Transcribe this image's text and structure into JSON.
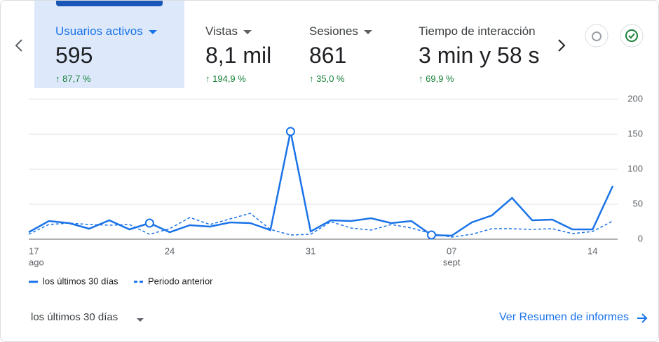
{
  "tabs": [
    {
      "name": "Usuarios activos",
      "value": "595",
      "change": "87,7 %"
    },
    {
      "name": "Vistas",
      "value": "8,1 mil",
      "change": "194,9 %"
    },
    {
      "name": "Sesiones",
      "value": "861",
      "change": "35,0 %"
    },
    {
      "name": "Tiempo de interacción",
      "value": "3 min y 58 s",
      "change": "69,9 %"
    }
  ],
  "chart_data": {
    "type": "line",
    "categories": [
      "17",
      null,
      null,
      null,
      null,
      null,
      null,
      "24",
      null,
      null,
      null,
      null,
      null,
      null,
      "31",
      null,
      null,
      null,
      null,
      null,
      null,
      "07",
      null,
      null,
      null,
      null,
      null,
      null,
      "14",
      null
    ],
    "months": [
      "ago",
      null,
      null,
      null,
      null,
      null,
      null,
      null,
      null,
      null,
      null,
      null,
      null,
      null,
      null,
      null,
      null,
      null,
      null,
      null,
      null,
      "sept",
      null,
      null,
      null,
      null,
      null,
      null,
      null,
      null
    ],
    "series": [
      {
        "name": "los últimos 30 días",
        "color": "#1a73e8",
        "dash": false,
        "marker_indices": [
          6,
          13,
          20
        ],
        "values": [
          10,
          26,
          23,
          15,
          27,
          14,
          23,
          10,
          20,
          18,
          24,
          23,
          13,
          154,
          11,
          27,
          26,
          30,
          23,
          26,
          6,
          5,
          24,
          34,
          59,
          27,
          28,
          14,
          14,
          76
        ]
      },
      {
        "name": "Periodo anterior",
        "color": "#1a73e8",
        "dash": true,
        "values": [
          7,
          21,
          23,
          21,
          20,
          21,
          7,
          15,
          31,
          21,
          29,
          37,
          14,
          6,
          7,
          25,
          16,
          13,
          21,
          16,
          8,
          3,
          7,
          15,
          15,
          14,
          15,
          8,
          11,
          26
        ]
      }
    ],
    "ylim": [
      0,
      200
    ],
    "yticks": [
      0,
      50,
      100,
      150,
      200
    ],
    "grid": true
  },
  "footer": {
    "range": "los últimos 30 días",
    "link": "Ver Resumen de informes"
  }
}
